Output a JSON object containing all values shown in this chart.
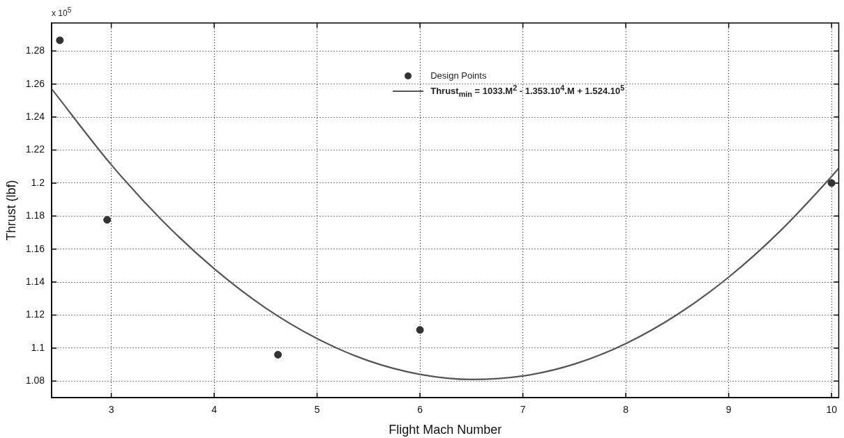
{
  "chart_data": {
    "type": "scatter",
    "xlabel": "Flight Mach Number",
    "ylabel": "Thrust (lbf)",
    "annotations": [
      "x 10$^{5}$"
    ],
    "xlim": [
      2.42,
      10.07
    ],
    "xticks": [
      3,
      4,
      5,
      6,
      7,
      8,
      9,
      10
    ],
    "ylim": [
      1.07,
      1.297
    ],
    "yticks": [
      1.08,
      1.1,
      1.12,
      1.14,
      1.16,
      1.18,
      1.2,
      1.22,
      1.24,
      1.26,
      1.28
    ],
    "grid": true,
    "legend": "top",
    "marker": "circle",
    "series": [
      {
        "name": "Design Points",
        "color": "#333333",
        "x": [
          2.5,
          2.96,
          4.62,
          6.0,
          10.0
        ],
        "values": [
          1.2865,
          1.1777,
          1.096,
          1.111,
          1.2
        ]
      },
      {
        "name": "Thrust$_{min}$ = 1033.M$^{2}$ - 1.353.10$^{4}$.M + 1.524.10$^{5}$",
        "type": "line",
        "marker": "none",
        "color": "#555555",
        "line_style": "solid",
        "x": [
          2.42,
          3,
          3.5,
          4,
          4.5,
          5,
          5.5,
          6,
          6.5,
          7,
          7.5,
          8,
          8.5,
          9,
          9.5,
          10,
          10.07
        ],
        "values": [
          1.2571,
          1.2111,
          1.177,
          1.1481,
          1.1243,
          1.1058,
          1.0923,
          1.0841,
          1.081,
          1.0831,
          1.0903,
          1.1027,
          1.1203,
          1.143,
          1.1709,
          1.204,
          1.209
        ]
      }
    ]
  }
}
